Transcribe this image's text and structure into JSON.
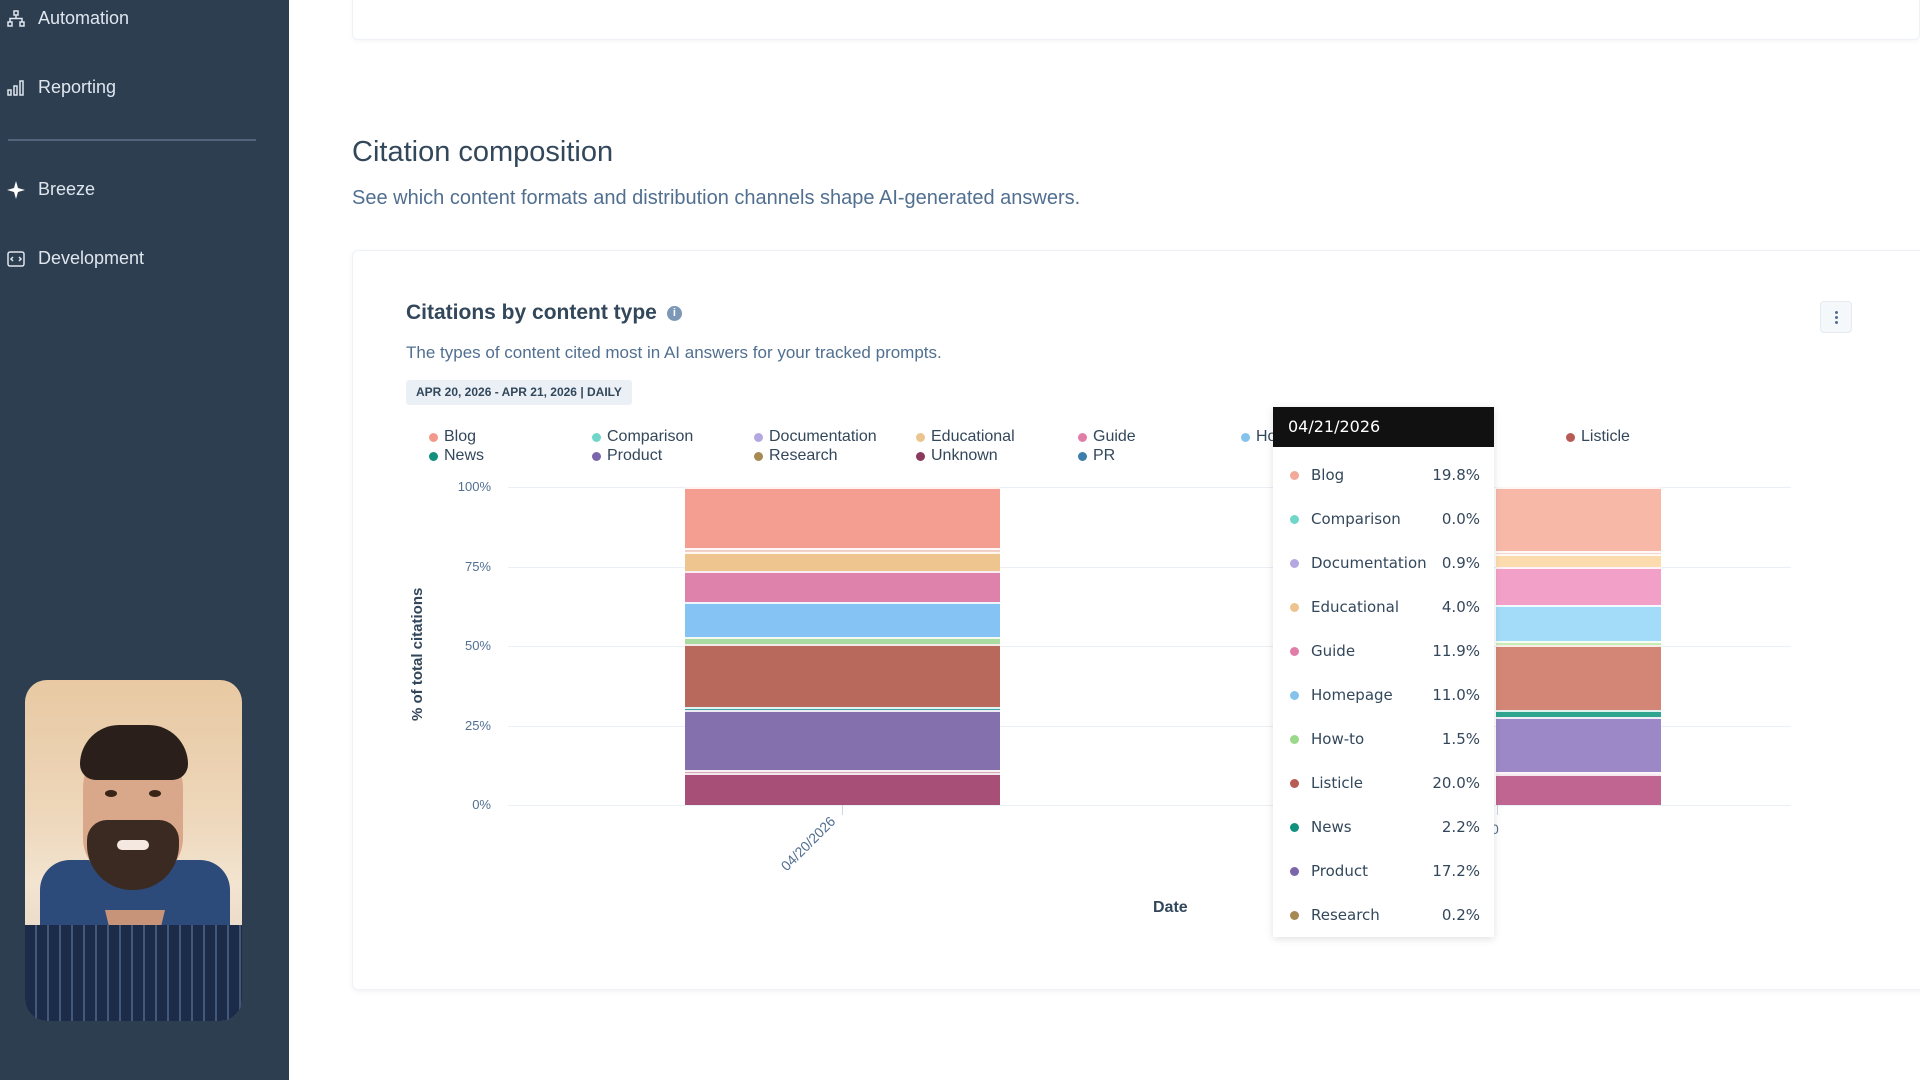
{
  "sidebar": {
    "items": [
      {
        "label": "Automation",
        "icon": "automation-icon"
      },
      {
        "label": "Reporting",
        "icon": "reporting-icon"
      },
      {
        "label": "Breeze",
        "icon": "sparkle-icon"
      },
      {
        "label": "Development",
        "icon": "development-icon"
      }
    ]
  },
  "section": {
    "title": "Citation composition",
    "subtitle": "See which content formats and distribution channels shape AI-generated answers."
  },
  "card": {
    "title": "Citations by content type",
    "info_icon": "i",
    "description": "The types of content cited most in AI answers for your tracked prompts.",
    "date_range": "APR 20, 2026 - APR 21, 2026 | DAILY",
    "menu_label": "More options"
  },
  "legend": [
    {
      "label": "Blog",
      "color": "#f2998a"
    },
    {
      "label": "Comparison",
      "color": "#6fd6c9"
    },
    {
      "label": "Documentation",
      "color": "#b3a8e0"
    },
    {
      "label": "Educational",
      "color": "#ebc48f"
    },
    {
      "label": "Guide",
      "color": "#e07ea8"
    },
    {
      "label": "Ho",
      "color": "#86c3ec"
    },
    {
      "label": "Listicle",
      "color": "#b85b55"
    },
    {
      "label": "News",
      "color": "#12907e"
    },
    {
      "label": "Product",
      "color": "#7b65ab"
    },
    {
      "label": "Research",
      "color": "#a68a52"
    },
    {
      "label": "Unknown",
      "color": "#8c3a5c"
    },
    {
      "label": "PR",
      "color": "#3c7fab"
    }
  ],
  "tooltip": {
    "date": "04/21/2026",
    "rows": [
      {
        "label": "Blog",
        "value": "19.8%",
        "color": "#f2a99a"
      },
      {
        "label": "Comparison",
        "value": "0.0%",
        "color": "#6fd6c9"
      },
      {
        "label": "Documentation",
        "value": "0.9%",
        "color": "#b3a8e0"
      },
      {
        "label": "Educational",
        "value": "4.0%",
        "color": "#ebc48f"
      },
      {
        "label": "Guide",
        "value": "11.9%",
        "color": "#e07ea8"
      },
      {
        "label": "Homepage",
        "value": "11.0%",
        "color": "#86c3ec"
      },
      {
        "label": "How-to",
        "value": "1.5%",
        "color": "#9ad98a"
      },
      {
        "label": "Listicle",
        "value": "20.0%",
        "color": "#b85b55"
      },
      {
        "label": "News",
        "value": "2.2%",
        "color": "#12907e"
      },
      {
        "label": "Product",
        "value": "17.2%",
        "color": "#7b65ab"
      },
      {
        "label": "Research",
        "value": "0.2%",
        "color": "#a68a52"
      }
    ]
  },
  "chart_data": {
    "type": "bar",
    "stacked": true,
    "normalized": true,
    "title": "Citations by content type",
    "subtitle": "The types of content cited most in AI answers for your tracked prompts.",
    "xlabel": "Date",
    "ylabel": "% of total citations",
    "ylim": [
      0,
      100
    ],
    "yticks": [
      "0%",
      "25%",
      "50%",
      "75%",
      "100%"
    ],
    "grid": true,
    "legend_position": "top",
    "categories": [
      "04/20/2026",
      "04/21/2026"
    ],
    "xtick_labels": [
      "04/20/2026",
      "0"
    ],
    "series": [
      {
        "name": "Unknown",
        "color_day1": "#a84f78",
        "color_day2": "#c06592",
        "values": [
          10.0,
          9.5
        ]
      },
      {
        "name": "Research",
        "color_day1": "#d6a8b8",
        "color_day2": "#e6b9c8",
        "values": [
          1.0,
          0.2
        ]
      },
      {
        "name": "Product",
        "color_day1": "#8470ad",
        "color_day2": "#9d88c7",
        "values": [
          19.0,
          17.2
        ]
      },
      {
        "name": "News",
        "color_day1": "#3fa6a6",
        "color_day2": "#2fa58f",
        "values": [
          0.7,
          2.2
        ]
      },
      {
        "name": "Listicle",
        "color_day1": "#b8695c",
        "color_day2": "#d38676",
        "values": [
          20.0,
          20.0
        ]
      },
      {
        "name": "How-to",
        "color_day1": "#a8dca0",
        "color_day2": "#c9ecb7",
        "values": [
          2.0,
          1.5
        ]
      },
      {
        "name": "Homepage",
        "color_day1": "#86c3f5",
        "color_day2": "#a3dcf8",
        "values": [
          11.0,
          11.0
        ]
      },
      {
        "name": "Guide",
        "color_day1": "#de82ac",
        "color_day2": "#f3a0c8",
        "values": [
          10.0,
          11.9
        ]
      },
      {
        "name": "Educational",
        "color_day1": "#eec58e",
        "color_day2": "#fcdcae",
        "values": [
          6.0,
          4.0
        ]
      },
      {
        "name": "Documentation",
        "color_day1": "#f2cfc6",
        "color_day2": "#f6d6d2",
        "values": [
          1.0,
          0.9
        ]
      },
      {
        "name": "Comparison",
        "color_day1": "#6fd6c9",
        "color_day2": "#6fd6c9",
        "values": [
          0.0,
          0.0
        ]
      },
      {
        "name": "Blog",
        "color_day1": "#f39e91",
        "color_day2": "#f7b8a8",
        "values": [
          19.3,
          19.8
        ]
      }
    ],
    "tooltip_date": "04/21/2026"
  }
}
